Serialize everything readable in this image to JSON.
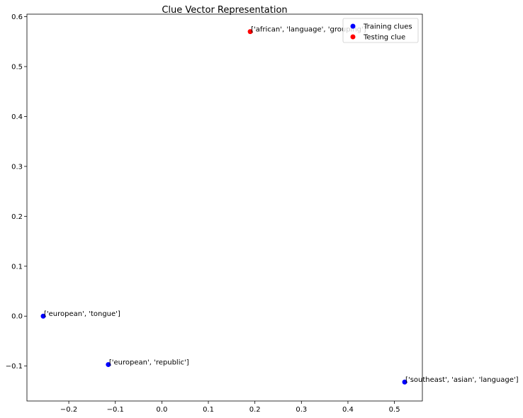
{
  "chart_data": {
    "type": "scatter",
    "title": "Clue Vector Representation",
    "xlabel": "",
    "ylabel": "",
    "xlim": [
      -0.29,
      0.56
    ],
    "ylim": [
      -0.17,
      0.605
    ],
    "xticks": [
      -0.2,
      -0.1,
      0.0,
      0.1,
      0.2,
      0.3,
      0.4,
      0.5
    ],
    "xtick_labels": [
      "−0.2",
      "−0.1",
      "0.0",
      "0.1",
      "0.2",
      "0.3",
      "0.4",
      "0.5"
    ],
    "yticks": [
      -0.1,
      0.0,
      0.1,
      0.2,
      0.3,
      0.4,
      0.5,
      0.6
    ],
    "ytick_labels": [
      "−0.1",
      "0.0",
      "0.1",
      "0.2",
      "0.3",
      "0.4",
      "0.5",
      "0.6"
    ],
    "grid": false,
    "legend_position": "top-right",
    "series": [
      {
        "name": "Training clues",
        "color": "#0000ff",
        "points": [
          {
            "x": -0.255,
            "y": 0.0,
            "label": "['european', 'tongue']"
          },
          {
            "x": -0.115,
            "y": -0.097,
            "label": "['european', 'republic']"
          },
          {
            "x": 0.522,
            "y": -0.132,
            "label": "['southeast', 'asian', 'language']"
          }
        ]
      },
      {
        "name": "Testing clue",
        "color": "#ff0000",
        "points": [
          {
            "x": 0.19,
            "y": 0.57,
            "label": "['african', 'language', 'grouping']"
          }
        ]
      }
    ]
  }
}
